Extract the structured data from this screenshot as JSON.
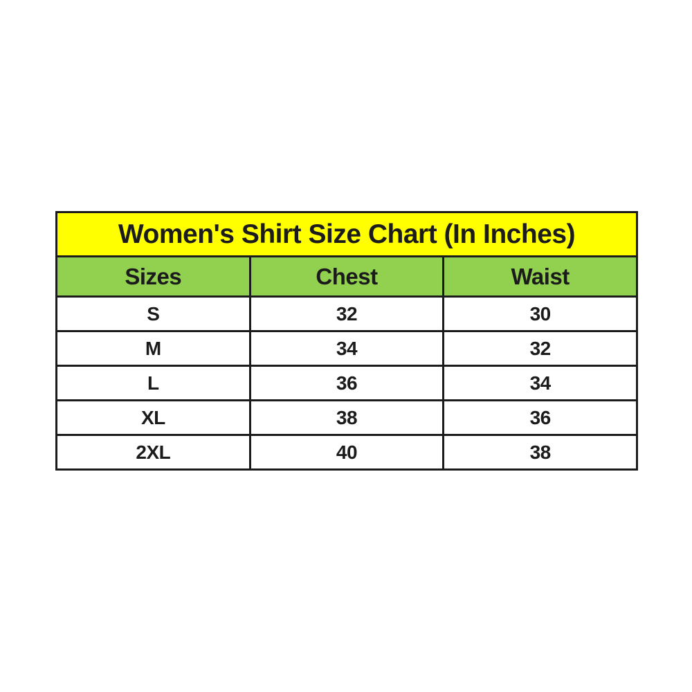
{
  "table": {
    "title": "Women's Shirt Size Chart (In Inches)",
    "columns": [
      "Sizes",
      "Chest",
      "Waist"
    ],
    "rows": [
      {
        "size": "S",
        "chest": "32",
        "waist": "30"
      },
      {
        "size": "M",
        "chest": "34",
        "waist": "32"
      },
      {
        "size": "L",
        "chest": "36",
        "waist": "34"
      },
      {
        "size": "XL",
        "chest": "38",
        "waist": "36"
      },
      {
        "size": "2XL",
        "chest": "40",
        "waist": "38"
      }
    ]
  },
  "colors": {
    "title_bg": "#ffff00",
    "header_bg": "#92d050",
    "row_bg": "#ffffff",
    "border_color": "#1b1b1b",
    "text_color": "#1b1b1b"
  },
  "chart_data": {
    "type": "table",
    "title": "Women's Shirt Size Chart (In Inches)",
    "columns": [
      "Sizes",
      "Chest",
      "Waist"
    ],
    "units": "inches",
    "categories": [
      "S",
      "M",
      "L",
      "XL",
      "2XL"
    ],
    "series": [
      {
        "name": "Chest",
        "values": [
          32,
          34,
          36,
          38,
          40
        ]
      },
      {
        "name": "Waist",
        "values": [
          30,
          32,
          34,
          36,
          38
        ]
      }
    ],
    "layout_hints": {
      "title_row_bg": "#ffff00",
      "header_row_bg": "#92d050",
      "grid": "heavy black borders",
      "text_align": "center"
    }
  }
}
